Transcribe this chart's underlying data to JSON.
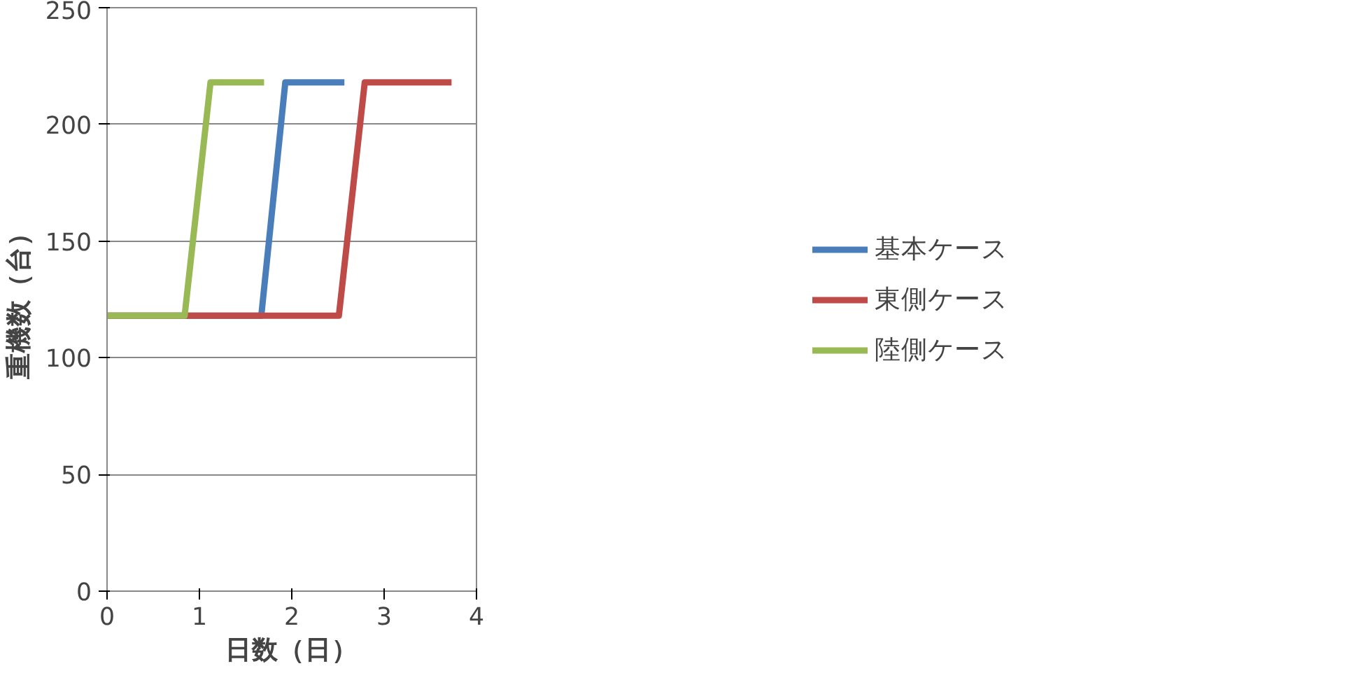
{
  "chart_data": {
    "type": "line",
    "xlabel": "日数（日）",
    "ylabel": "重機数（台）",
    "xlim": [
      0,
      4
    ],
    "xticks": [
      0,
      1,
      2,
      3,
      4
    ],
    "ylim": [
      0,
      250
    ],
    "yticks": [
      0,
      50,
      100,
      150,
      200,
      250
    ],
    "grid": "y",
    "legend": "right",
    "marker": "none",
    "line_style": "solid",
    "series": [
      {
        "name": "基本ケース",
        "color": "#4a7ebb",
        "x": [
          0,
          1.67,
          1.93,
          2.57
        ],
        "values": [
          118,
          118,
          218,
          218
        ]
      },
      {
        "name": "東側ケース",
        "color": "#be4b48",
        "x": [
          0,
          2.51,
          2.79,
          3.73
        ],
        "values": [
          118,
          118,
          218,
          218
        ]
      },
      {
        "name": "陸側ケース",
        "color": "#98b954",
        "x": [
          0,
          0.84,
          1.12,
          1.7
        ],
        "values": [
          118,
          118,
          218,
          218
        ]
      }
    ]
  }
}
